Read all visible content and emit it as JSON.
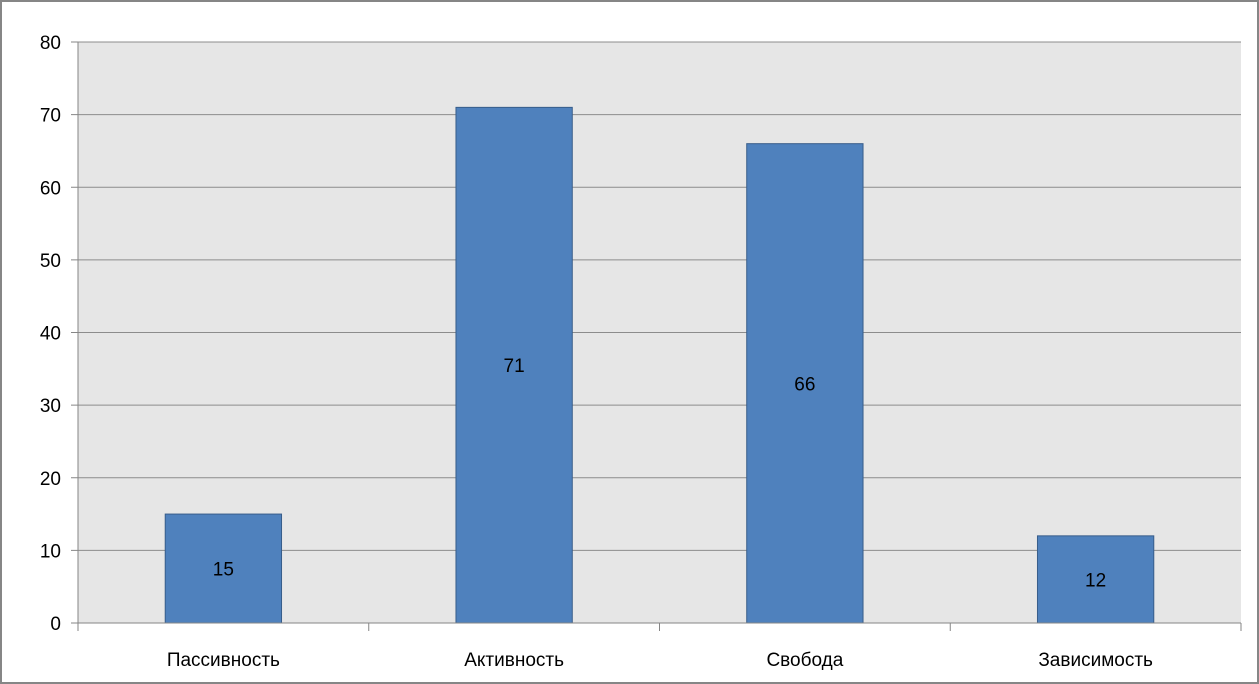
{
  "chart_data": {
    "type": "bar",
    "title": "",
    "xlabel": "",
    "ylabel": "",
    "categories": [
      "Пассивность",
      "Активность",
      "Свобода",
      "Зависимость"
    ],
    "values": [
      15,
      71,
      66,
      12
    ],
    "ylim": [
      0,
      80
    ],
    "yticks": [
      0,
      10,
      20,
      30,
      40,
      50,
      60,
      70,
      80
    ],
    "grid": true,
    "legend": "none",
    "data_labels": true,
    "colors": {
      "bar_fill": "#4f81bd",
      "bar_stroke": "#385d8a",
      "plot_background": "#e6e6e6",
      "gridline": "#8c8c8c",
      "frame_border": "#868686",
      "axis": "#868686"
    }
  }
}
